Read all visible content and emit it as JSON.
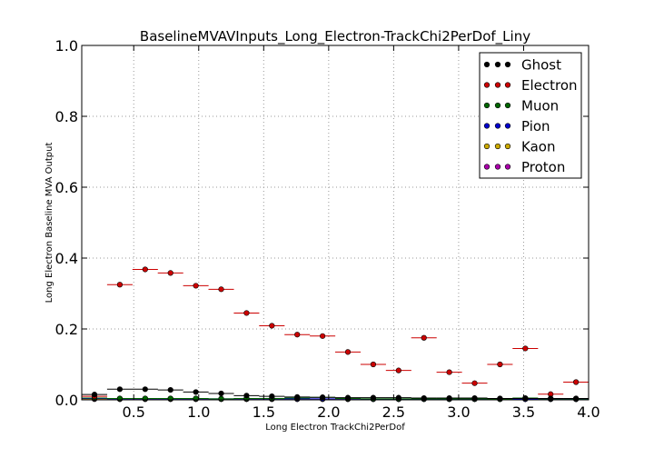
{
  "chart_data": {
    "type": "scatter",
    "title": "BaselineMVAVInputs_Long_Electron-TrackChi2PerDof_Liny",
    "xlabel": "Long Electron TrackChi2PerDof",
    "ylabel": "Long Electron Baseline MVA Output",
    "xlim": [
      0.1,
      4.0
    ],
    "ylim": [
      0.0,
      1.0
    ],
    "xticks": [
      0.5,
      1.0,
      1.5,
      2.0,
      2.5,
      3.0,
      3.5,
      4.0
    ],
    "xtick_labels": [
      "0.5",
      "1.0",
      "1.5",
      "2.0",
      "2.5",
      "3.0",
      "3.5",
      "4.0"
    ],
    "yticks": [
      0.0,
      0.2,
      0.4,
      0.6,
      0.8,
      1.0
    ],
    "ytick_labels": [
      "0.0",
      "0.2",
      "0.4",
      "0.6",
      "0.8",
      "1.0"
    ],
    "grid": true,
    "legend_position": "top-right",
    "x_bin_half_width": 0.098,
    "x": [
      0.198,
      0.393,
      0.588,
      0.783,
      0.978,
      1.173,
      1.368,
      1.563,
      1.758,
      1.953,
      2.148,
      2.343,
      2.538,
      2.733,
      2.928,
      3.123,
      3.318,
      3.513,
      3.708,
      3.903
    ],
    "series": [
      {
        "name": "Ghost",
        "color": "#000000",
        "values": [
          0.015,
          0.03,
          0.03,
          0.028,
          0.022,
          0.018,
          0.012,
          0.01,
          0.008,
          0.007,
          0.006,
          0.006,
          0.006,
          0.005,
          0.005,
          0.005,
          0.004,
          0.004,
          0.004,
          0.004
        ]
      },
      {
        "name": "Electron",
        "color": "#cc0000",
        "values": [
          0.01,
          0.325,
          0.368,
          0.358,
          0.322,
          0.312,
          0.245,
          0.209,
          0.184,
          0.18,
          0.135,
          0.1,
          0.083,
          0.175,
          0.078,
          0.047,
          0.1,
          0.145,
          0.016,
          0.05
        ]
      },
      {
        "name": "Muon",
        "color": "#006600",
        "values": [
          0.005,
          0.004,
          0.004,
          0.004,
          0.004,
          0.003,
          0.004,
          0.004,
          0.005,
          0.007,
          0.004,
          0.003,
          0.003,
          0.003,
          0.003,
          0.003,
          0.002,
          0.005,
          0.003,
          0.003
        ]
      },
      {
        "name": "Pion",
        "color": "#0000cc",
        "values": [
          0.004,
          0.003,
          0.003,
          0.003,
          0.003,
          0.003,
          0.003,
          0.003,
          0.003,
          0.003,
          0.003,
          0.002,
          0.002,
          0.002,
          0.002,
          0.002,
          0.002,
          0.002,
          0.002,
          0.002
        ]
      },
      {
        "name": "Kaon",
        "color": "#ccaa00",
        "values": [
          0.003,
          0.002,
          0.002,
          0.002,
          0.002,
          0.002,
          0.002,
          0.002,
          0.002,
          0.002,
          0.002,
          0.002,
          0.002,
          0.002,
          0.002,
          0.002,
          0.002,
          0.002,
          0.002,
          0.002
        ]
      },
      {
        "name": "Proton",
        "color": "#aa00aa",
        "values": [
          0.002,
          0.002,
          0.002,
          0.002,
          0.002,
          0.002,
          0.002,
          0.002,
          0.002,
          0.002,
          0.002,
          0.002,
          0.002,
          0.002,
          0.002,
          0.002,
          0.002,
          0.002,
          0.002,
          0.002
        ]
      }
    ]
  }
}
